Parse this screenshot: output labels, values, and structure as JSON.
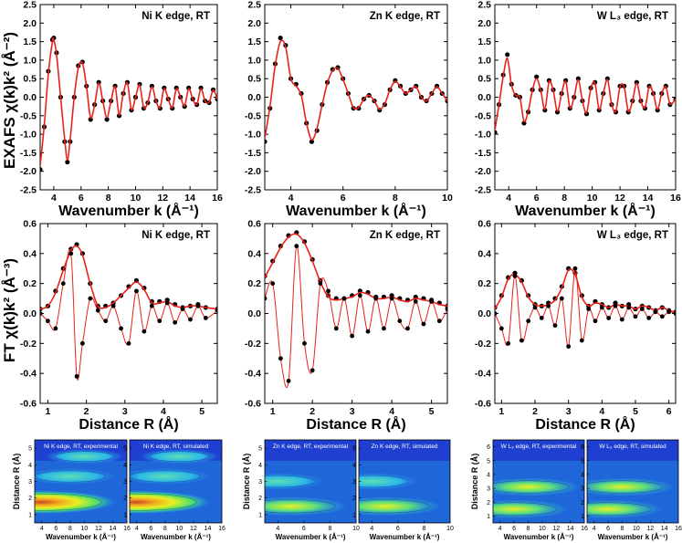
{
  "row_labels": {
    "exafs": "EXAFS χ(k)k² (Å⁻²)",
    "ft": "FT χ(k)k² (Å⁻³)"
  },
  "colors": {
    "experimental_points": "#000000",
    "fit_line": "#e8221b",
    "wavelet_low": "#1f3fd0",
    "wavelet_high": "#e03418"
  },
  "chart_data": [
    {
      "id": "exafs-ni",
      "type": "line",
      "annotation": "Ni K edge, RT",
      "xlabel": "Wavenumber k (Å⁻¹)",
      "ylabel": "EXAFS χ(k)k² (Å⁻²)",
      "xlim": [
        3,
        16
      ],
      "ylim": [
        -2.5,
        2.5
      ],
      "xticks": [
        4,
        6,
        8,
        10,
        12,
        14,
        16
      ],
      "yticks": [
        -2.5,
        -2.0,
        -1.5,
        -1.0,
        -0.5,
        0.0,
        0.5,
        1.0,
        1.5,
        2.0,
        2.5
      ],
      "x": [
        3.0,
        3.3,
        3.6,
        3.9,
        4.0,
        4.2,
        4.5,
        4.8,
        5.0,
        5.2,
        5.5,
        5.8,
        6.1,
        6.4,
        6.7,
        7.0,
        7.3,
        7.6,
        7.9,
        8.2,
        8.5,
        8.8,
        9.1,
        9.4,
        9.7,
        10.0,
        10.3,
        10.6,
        10.9,
        11.2,
        11.5,
        11.8,
        12.1,
        12.4,
        12.7,
        13.0,
        13.3,
        13.6,
        13.9,
        14.2,
        14.5,
        14.8,
        15.1,
        15.4,
        15.7,
        16.0
      ],
      "series": [
        {
          "name": "",
          "values": [
            -1.95,
            -0.8,
            0.7,
            1.55,
            1.6,
            1.2,
            0.0,
            -1.2,
            -1.75,
            -1.2,
            0.0,
            0.85,
            0.95,
            0.3,
            -0.6,
            -0.2,
            0.4,
            -0.1,
            -0.6,
            -0.1,
            0.3,
            -0.5,
            0.1,
            0.4,
            -0.35,
            0.0,
            0.35,
            -0.3,
            -0.15,
            0.3,
            -0.1,
            -0.3,
            0.25,
            -0.05,
            -0.3,
            0.25,
            0.0,
            -0.25,
            0.25,
            -0.05,
            -0.2,
            0.25,
            -0.1,
            -0.15,
            0.2,
            -0.05
          ]
        },
        {
          "name": "",
          "values": [
            -1.85,
            -0.75,
            0.65,
            1.5,
            1.55,
            1.15,
            0.0,
            -1.15,
            -1.7,
            -1.15,
            0.0,
            0.8,
            0.92,
            0.3,
            -0.55,
            -0.2,
            0.38,
            -0.1,
            -0.55,
            -0.1,
            0.28,
            -0.48,
            0.1,
            0.38,
            -0.33,
            0.0,
            0.33,
            -0.28,
            -0.14,
            0.28,
            -0.1,
            -0.28,
            0.23,
            -0.05,
            -0.28,
            0.23,
            0.0,
            -0.23,
            0.23,
            -0.05,
            -0.19,
            0.23,
            -0.1,
            -0.14,
            0.19,
            -0.05
          ]
        }
      ]
    },
    {
      "id": "exafs-zn",
      "type": "line",
      "annotation": "Zn K edge, RT",
      "xlabel": "Wavenumber k (Å⁻¹)",
      "ylabel": "",
      "xlim": [
        3,
        10
      ],
      "ylim": [
        -2.5,
        2.5
      ],
      "xticks": [
        4,
        6,
        8,
        10
      ],
      "yticks": [
        -2.5,
        -2.0,
        -1.5,
        -1.0,
        -0.5,
        0.0,
        0.5,
        1.0,
        1.5,
        2.0,
        2.5
      ],
      "x": [
        3.0,
        3.2,
        3.4,
        3.6,
        3.8,
        4.0,
        4.2,
        4.4,
        4.6,
        4.8,
        5.0,
        5.2,
        5.4,
        5.6,
        5.8,
        6.0,
        6.2,
        6.4,
        6.6,
        6.8,
        7.0,
        7.2,
        7.4,
        7.6,
        7.8,
        8.0,
        8.2,
        8.4,
        8.6,
        8.8,
        9.0,
        9.2,
        9.4,
        9.6,
        9.8,
        10.0
      ],
      "series": [
        {
          "name": "",
          "values": [
            -1.2,
            -0.3,
            0.9,
            1.6,
            1.4,
            0.5,
            0.35,
            0.1,
            -0.7,
            -1.2,
            -0.9,
            -0.2,
            0.4,
            0.75,
            0.8,
            0.5,
            0.1,
            -0.3,
            -0.3,
            -0.05,
            0.05,
            -0.1,
            -0.35,
            -0.2,
            0.2,
            0.45,
            0.3,
            0.1,
            0.2,
            0.3,
            0.0,
            -0.1,
            0.1,
            0.3,
            0.1,
            -0.1
          ]
        },
        {
          "name": "",
          "values": [
            -1.1,
            -0.25,
            0.85,
            1.5,
            1.35,
            0.5,
            0.3,
            0.05,
            -0.7,
            -1.15,
            -0.85,
            -0.2,
            0.38,
            0.72,
            0.78,
            0.48,
            0.1,
            -0.28,
            -0.28,
            -0.05,
            0.05,
            -0.1,
            -0.33,
            -0.18,
            0.2,
            0.42,
            0.28,
            0.1,
            0.2,
            0.28,
            0.0,
            -0.1,
            0.1,
            0.28,
            0.1,
            -0.1
          ]
        }
      ]
    },
    {
      "id": "exafs-w",
      "type": "line",
      "annotation": "W L₃ edge, RT",
      "xlabel": "Wavenumber k (Å⁻¹)",
      "ylabel": "",
      "xlim": [
        3,
        16
      ],
      "ylim": [
        -2.5,
        2.5
      ],
      "xticks": [
        4,
        6,
        8,
        10,
        12,
        14,
        16
      ],
      "yticks": [
        -2.5,
        -2.0,
        -1.5,
        -1.0,
        -0.5,
        0.0,
        0.5,
        1.0,
        1.5,
        2.0,
        2.5
      ],
      "x": [
        3.0,
        3.3,
        3.6,
        3.9,
        4.2,
        4.5,
        4.8,
        5.1,
        5.4,
        5.7,
        6.0,
        6.3,
        6.6,
        6.9,
        7.2,
        7.5,
        7.8,
        8.1,
        8.4,
        8.7,
        9.0,
        9.3,
        9.6,
        9.9,
        10.2,
        10.5,
        10.8,
        11.1,
        11.4,
        11.7,
        12.0,
        12.3,
        12.6,
        12.9,
        13.2,
        13.5,
        13.8,
        14.1,
        14.4,
        14.7,
        15.0,
        15.3,
        15.6,
        16.0
      ],
      "series": [
        {
          "name": "",
          "values": [
            -0.95,
            -0.2,
            0.6,
            1.15,
            0.35,
            0.05,
            0.0,
            -0.7,
            -0.4,
            0.2,
            0.55,
            0.2,
            -0.35,
            0.45,
            0.2,
            -0.4,
            0.1,
            0.45,
            -0.3,
            0.0,
            0.5,
            -0.1,
            -0.45,
            0.25,
            0.4,
            -0.35,
            0.1,
            0.5,
            -0.2,
            -0.4,
            0.3,
            0.3,
            -0.4,
            -0.1,
            0.4,
            -0.1,
            -0.3,
            0.3,
            0.1,
            -0.35,
            0.1,
            0.3,
            -0.2,
            -0.05
          ]
        },
        {
          "name": "",
          "values": [
            -0.9,
            -0.2,
            0.55,
            1.05,
            0.32,
            0.05,
            0.0,
            -0.65,
            -0.38,
            0.18,
            0.5,
            0.18,
            -0.33,
            0.42,
            0.18,
            -0.38,
            0.1,
            0.42,
            -0.28,
            0.0,
            0.47,
            -0.1,
            -0.42,
            0.23,
            0.38,
            -0.33,
            0.1,
            0.47,
            -0.18,
            -0.38,
            0.28,
            0.28,
            -0.38,
            -0.1,
            0.38,
            -0.1,
            -0.28,
            0.28,
            0.1,
            -0.33,
            0.1,
            0.28,
            -0.18,
            -0.05
          ]
        }
      ]
    },
    {
      "id": "ft-ni",
      "type": "line",
      "annotation": "Ni K edge, RT",
      "xlabel": "Distance R (Å)",
      "ylabel": "FT χ(k)k² (Å⁻³)",
      "xlim": [
        0.8,
        5.4
      ],
      "ylim": [
        -0.6,
        0.6
      ],
      "xticks": [
        1,
        2,
        3,
        4,
        5
      ],
      "yticks": [
        -0.6,
        -0.4,
        -0.2,
        0.0,
        0.2,
        0.4,
        0.6
      ],
      "x": [
        0.8,
        1.0,
        1.2,
        1.4,
        1.6,
        1.75,
        1.9,
        2.1,
        2.3,
        2.5,
        2.7,
        2.9,
        3.1,
        3.3,
        3.5,
        3.7,
        3.9,
        4.1,
        4.3,
        4.5,
        4.7,
        4.9,
        5.1,
        5.4
      ],
      "series": [
        {
          "name": "",
          "values": [
            0.03,
            0.05,
            0.15,
            0.3,
            0.43,
            0.46,
            0.4,
            0.2,
            0.05,
            0.05,
            0.07,
            0.12,
            0.18,
            0.22,
            0.17,
            0.08,
            0.08,
            0.09,
            0.06,
            0.04,
            0.05,
            0.06,
            0.04,
            0.03
          ]
        },
        {
          "name": "",
          "values": [
            0.03,
            0.05,
            0.14,
            0.29,
            0.42,
            0.45,
            0.39,
            0.2,
            0.05,
            0.04,
            0.07,
            0.12,
            0.17,
            0.21,
            0.16,
            0.07,
            0.07,
            0.08,
            0.05,
            0.04,
            0.05,
            0.05,
            0.04,
            0.03
          ]
        },
        {
          "name": "",
          "values": [
            0.0,
            -0.05,
            -0.1,
            0.2,
            0.4,
            -0.42,
            -0.2,
            0.1,
            0.02,
            -0.05,
            0.05,
            -0.1,
            -0.2,
            0.15,
            -0.12,
            0.05,
            -0.05,
            0.07,
            -0.06,
            0.03,
            -0.04,
            0.05,
            -0.03,
            0.02
          ]
        }
      ]
    },
    {
      "id": "ft-zn",
      "type": "line",
      "annotation": "Zn K edge, RT",
      "xlabel": "Distance R (Å)",
      "ylabel": "",
      "xlim": [
        0.8,
        5.4
      ],
      "ylim": [
        -0.6,
        0.6
      ],
      "xticks": [
        1,
        2,
        3,
        4,
        5
      ],
      "yticks": [
        -0.6,
        -0.4,
        -0.2,
        0.0,
        0.2,
        0.4,
        0.6
      ],
      "x": [
        0.8,
        1.0,
        1.2,
        1.4,
        1.6,
        1.8,
        2.0,
        2.2,
        2.4,
        2.6,
        2.8,
        3.0,
        3.2,
        3.4,
        3.6,
        3.8,
        4.0,
        4.2,
        4.4,
        4.6,
        4.8,
        5.0,
        5.2,
        5.4
      ],
      "series": [
        {
          "name": "",
          "values": [
            0.25,
            0.35,
            0.45,
            0.52,
            0.54,
            0.48,
            0.36,
            0.22,
            0.12,
            0.1,
            0.1,
            0.12,
            0.15,
            0.14,
            0.11,
            0.11,
            0.12,
            0.1,
            0.09,
            0.11,
            0.1,
            0.09,
            0.07,
            0.05
          ]
        },
        {
          "name": "",
          "values": [
            0.24,
            0.34,
            0.44,
            0.51,
            0.53,
            0.47,
            0.35,
            0.21,
            0.11,
            0.09,
            0.1,
            0.11,
            0.14,
            0.13,
            0.1,
            0.1,
            0.11,
            0.09,
            0.08,
            0.1,
            0.09,
            0.08,
            0.06,
            0.05
          ]
        },
        {
          "name": "",
          "values": [
            0.1,
            0.2,
            -0.3,
            -0.45,
            0.45,
            -0.2,
            -0.38,
            0.2,
            0.15,
            -0.1,
            0.1,
            -0.15,
            0.12,
            -0.12,
            0.1,
            -0.1,
            0.1,
            -0.05,
            -0.1,
            0.08,
            -0.07,
            0.08,
            -0.05,
            0.03
          ]
        }
      ]
    },
    {
      "id": "ft-w",
      "type": "line",
      "annotation": "W L₃ edge, RT",
      "xlabel": "Distance R (Å)",
      "ylabel": "",
      "xlim": [
        0.8,
        6.2
      ],
      "ylim": [
        -0.6,
        0.6
      ],
      "xticks": [
        1,
        2,
        3,
        4,
        5,
        6
      ],
      "yticks": [
        -0.6,
        -0.4,
        -0.2,
        0.0,
        0.2,
        0.4,
        0.6
      ],
      "x": [
        0.8,
        1.0,
        1.2,
        1.4,
        1.6,
        1.8,
        2.0,
        2.2,
        2.4,
        2.6,
        2.8,
        3.0,
        3.2,
        3.4,
        3.6,
        3.8,
        4.0,
        4.2,
        4.4,
        4.6,
        4.8,
        5.0,
        5.2,
        5.4,
        5.6,
        5.8,
        6.0,
        6.2
      ],
      "series": [
        {
          "name": "",
          "values": [
            0.04,
            0.12,
            0.24,
            0.27,
            0.22,
            0.12,
            0.06,
            0.05,
            0.07,
            0.1,
            0.18,
            0.3,
            0.27,
            0.12,
            0.05,
            0.08,
            0.06,
            0.04,
            0.07,
            0.05,
            0.06,
            0.03,
            0.05,
            0.04,
            0.02,
            0.04,
            0.02,
            0.01
          ]
        },
        {
          "name": "",
          "values": [
            0.03,
            0.11,
            0.23,
            0.26,
            0.21,
            0.11,
            0.06,
            0.05,
            0.06,
            0.09,
            0.17,
            0.29,
            0.26,
            0.11,
            0.05,
            0.07,
            0.06,
            0.04,
            0.06,
            0.05,
            0.05,
            0.03,
            0.05,
            0.04,
            0.02,
            0.04,
            0.02,
            0.01
          ]
        },
        {
          "name": "",
          "values": [
            0.0,
            -0.1,
            -0.2,
            0.25,
            -0.18,
            -0.05,
            0.04,
            -0.03,
            0.05,
            -0.08,
            0.1,
            -0.22,
            0.3,
            -0.18,
            0.03,
            -0.05,
            0.04,
            -0.03,
            0.05,
            -0.04,
            0.04,
            -0.02,
            0.03,
            -0.03,
            0.01,
            -0.02,
            0.01,
            0.0
          ]
        }
      ]
    },
    {
      "id": "wt-ni-exp",
      "type": "heatmap",
      "annotation": "Ni K edge, RT, experimental",
      "xlabel": "Wavenumber k (Å⁻¹)",
      "ylabel": "Distance R (Å)",
      "xlim": [
        3,
        16
      ],
      "ylim": [
        0.5,
        5.5
      ],
      "xticks": [
        4,
        6,
        8,
        10,
        12,
        14,
        16
      ],
      "yticks": [
        1,
        2,
        3,
        4,
        5
      ],
      "peaks": [
        {
          "k": 4,
          "r": 1.75,
          "intensity": 1.0
        },
        {
          "k": 8,
          "r": 3.3,
          "intensity": 0.35
        },
        {
          "k": 10,
          "r": 4.5,
          "intensity": 0.2
        }
      ]
    },
    {
      "id": "wt-ni-sim",
      "type": "heatmap",
      "annotation": "Ni K edge, RT, simulated",
      "xlabel": "Wavenumber k (Å⁻¹)",
      "ylabel": "",
      "xlim": [
        3,
        16
      ],
      "ylim": [
        0.5,
        5.5
      ],
      "xticks": [
        4,
        6,
        8,
        10,
        12,
        14,
        16
      ],
      "yticks": [
        1,
        2,
        3,
        4,
        5
      ],
      "peaks": [
        {
          "k": 4,
          "r": 1.75,
          "intensity": 1.0
        },
        {
          "k": 8,
          "r": 3.3,
          "intensity": 0.35
        },
        {
          "k": 10,
          "r": 4.5,
          "intensity": 0.2
        }
      ]
    },
    {
      "id": "wt-zn-exp",
      "type": "heatmap",
      "annotation": "Zn K edge, RT, experimental",
      "xlabel": "Wavenumber k (Å⁻¹)",
      "ylabel": "Distance R (Å)",
      "xlim": [
        3,
        10
      ],
      "ylim": [
        0.5,
        5.5
      ],
      "xticks": [
        4,
        6,
        8,
        10
      ],
      "yticks": [
        1,
        2,
        3,
        4,
        5
      ],
      "peaks": [
        {
          "k": 5,
          "r": 1.5,
          "intensity": 0.6
        },
        {
          "k": 4,
          "r": 3.0,
          "intensity": 0.4
        }
      ]
    },
    {
      "id": "wt-zn-sim",
      "type": "heatmap",
      "annotation": "Zn K edge, RT, simulated",
      "xlabel": "Wavenumber k (Å⁻¹)",
      "ylabel": "",
      "xlim": [
        3,
        10
      ],
      "ylim": [
        0.5,
        5.5
      ],
      "xticks": [
        4,
        6,
        8,
        10
      ],
      "yticks": [
        1,
        2,
        3,
        4,
        5
      ],
      "peaks": [
        {
          "k": 5,
          "r": 1.5,
          "intensity": 0.6
        },
        {
          "k": 4,
          "r": 3.0,
          "intensity": 0.4
        }
      ]
    },
    {
      "id": "wt-w-exp",
      "type": "heatmap",
      "annotation": "W L₃ edge, RT, experimental",
      "xlabel": "Wavenumber k (Å⁻¹)",
      "ylabel": "Distance R (Å)",
      "xlim": [
        3,
        16
      ],
      "ylim": [
        0.5,
        6.5
      ],
      "xticks": [
        4,
        6,
        8,
        10,
        12,
        14,
        16
      ],
      "yticks": [
        1,
        2,
        3,
        4,
        5,
        6
      ],
      "peaks": [
        {
          "k": 6,
          "r": 1.5,
          "intensity": 0.55
        },
        {
          "k": 8,
          "r": 3.1,
          "intensity": 0.5
        }
      ]
    },
    {
      "id": "wt-w-sim",
      "type": "heatmap",
      "annotation": "W L₃ edge, RT, simulated",
      "xlabel": "Wavenumber k (Å⁻¹)",
      "ylabel": "",
      "xlim": [
        3,
        16
      ],
      "ylim": [
        0.5,
        6.5
      ],
      "xticks": [
        4,
        6,
        8,
        10,
        12,
        14,
        16
      ],
      "yticks": [
        1,
        2,
        3,
        4,
        5,
        6
      ],
      "peaks": [
        {
          "k": 6,
          "r": 1.5,
          "intensity": 0.55
        },
        {
          "k": 8,
          "r": 3.1,
          "intensity": 0.5
        }
      ]
    }
  ]
}
